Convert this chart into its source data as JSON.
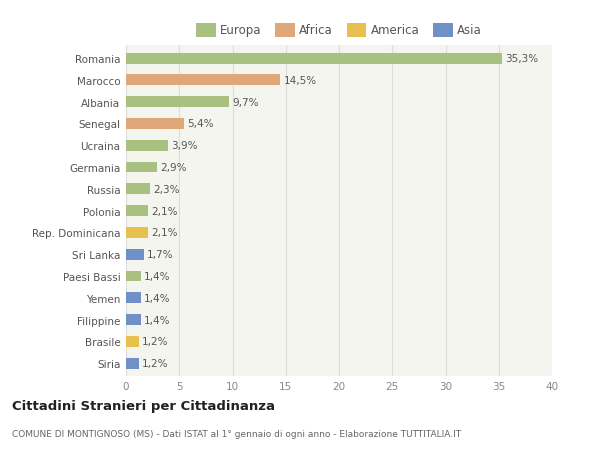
{
  "categories": [
    "Siria",
    "Brasile",
    "Filippine",
    "Yemen",
    "Paesi Bassi",
    "Sri Lanka",
    "Rep. Dominicana",
    "Polonia",
    "Russia",
    "Germania",
    "Ucraina",
    "Senegal",
    "Albania",
    "Marocco",
    "Romania"
  ],
  "values": [
    1.2,
    1.2,
    1.4,
    1.4,
    1.4,
    1.7,
    2.1,
    2.1,
    2.3,
    2.9,
    3.9,
    5.4,
    9.7,
    14.5,
    35.3
  ],
  "labels": [
    "1,2%",
    "1,2%",
    "1,4%",
    "1,4%",
    "1,4%",
    "1,7%",
    "2,1%",
    "2,1%",
    "2,3%",
    "2,9%",
    "3,9%",
    "5,4%",
    "9,7%",
    "14,5%",
    "35,3%"
  ],
  "colors": [
    "#7090c8",
    "#e8c050",
    "#7090c8",
    "#7090c8",
    "#a8c080",
    "#7090c8",
    "#e8c050",
    "#a8c080",
    "#a8c080",
    "#a8c080",
    "#a8c080",
    "#e0a878",
    "#a8c080",
    "#e0a878",
    "#a8c080"
  ],
  "legend_labels": [
    "Europa",
    "Africa",
    "America",
    "Asia"
  ],
  "legend_colors": [
    "#a8c080",
    "#e0a878",
    "#e8c050",
    "#7090c8"
  ],
  "title": "Cittadini Stranieri per Cittadinanza",
  "subtitle": "COMUNE DI MONTIGNOSO (MS) - Dati ISTAT al 1° gennaio di ogni anno - Elaborazione TUTTITALIA.IT",
  "xlim": [
    0,
    40
  ],
  "xticks": [
    0,
    5,
    10,
    15,
    20,
    25,
    30,
    35,
    40
  ],
  "background_color": "#ffffff",
  "plot_bg_color": "#f5f5f0",
  "grid_color": "#dddddd",
  "bar_height": 0.5
}
